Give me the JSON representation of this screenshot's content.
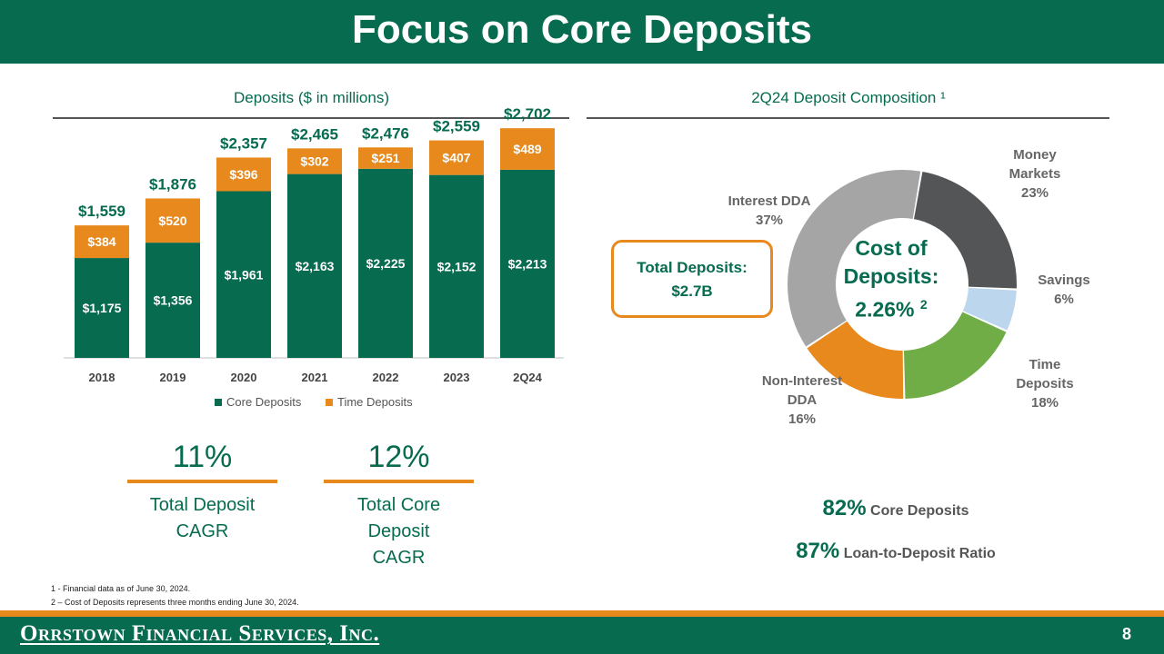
{
  "slide": {
    "title": "Focus on Core Deposits",
    "page_number": "8",
    "logo_text": "Orrstown Financial Services, Inc."
  },
  "left": {
    "section_title": "Deposits ($ in millions)",
    "cagr": [
      {
        "value": "11%",
        "label": "Total Deposit CAGR"
      },
      {
        "value": "12%",
        "label": "Total Core Deposit CAGR"
      }
    ]
  },
  "right": {
    "section_title": "2Q24 Deposit Composition ¹",
    "total_box": {
      "line1": "Total Deposits:",
      "line2": "$2.7B"
    },
    "cost_box": {
      "line1": "Cost of",
      "line2": "Deposits:",
      "value": "2.26%",
      "sup": "2"
    },
    "stats": [
      {
        "value": "82%",
        "label": "Core Deposits"
      },
      {
        "value": "87%",
        "label": "Loan-to-Deposit Ratio"
      }
    ]
  },
  "footnotes": [
    "1 -  Financial data as of June 30, 2024.",
    "2 – Cost of Deposits represents three months ending June 30, 2024."
  ],
  "colors": {
    "green": "#066b4f",
    "orange": "#e8891e",
    "dark_gray": "#545556",
    "light_blue": "#bcd6ee",
    "light_green": "#70ad47",
    "light_gray": "#a5a5a5"
  },
  "chart_data": [
    {
      "type": "bar",
      "stacked": true,
      "title": "Deposits ($ in millions)",
      "categories": [
        "2018",
        "2019",
        "2020",
        "2021",
        "2022",
        "2023",
        "2Q24"
      ],
      "series": [
        {
          "name": "Core Deposits",
          "color": "#066b4f",
          "values": [
            1175,
            1356,
            1961,
            2163,
            2225,
            2152,
            2213
          ],
          "labels": [
            "$1,175",
            "$1,356",
            "$1,961",
            "$2,163",
            "$2,225",
            "$2,152",
            "$2,213"
          ]
        },
        {
          "name": "Time Deposits",
          "color": "#e8891e",
          "values": [
            384,
            520,
            396,
            302,
            251,
            407,
            489
          ],
          "labels": [
            "$384",
            "$520",
            "$396",
            "$302",
            "$251",
            "$407",
            "$489"
          ]
        }
      ],
      "totals": [
        "$1,559",
        "$1,876",
        "$2,357",
        "$2,465",
        "$2,476",
        "$2,559",
        "$2,702"
      ],
      "ylim": [
        0,
        2800
      ],
      "legend": "bottom"
    },
    {
      "type": "pie",
      "donut": true,
      "title": "2Q24 Deposit Composition",
      "slices": [
        {
          "name": "Money Markets",
          "value": 23,
          "label": "23%",
          "color": "#545556",
          "label_lines": [
            "Money",
            "Markets",
            "23%"
          ]
        },
        {
          "name": "Savings",
          "value": 6,
          "label": "6%",
          "color": "#bcd6ee",
          "label_lines": [
            "Savings",
            "6%"
          ]
        },
        {
          "name": "Time Deposits",
          "value": 18,
          "label": "18%",
          "color": "#70ad47",
          "label_lines": [
            "Time",
            "Deposits",
            "18%"
          ]
        },
        {
          "name": "Non-Interest DDA",
          "value": 16,
          "label": "16%",
          "color": "#e8891e",
          "label_lines": [
            "Non-Interest",
            "DDA",
            "16%"
          ]
        },
        {
          "name": "Interest DDA",
          "value": 37,
          "label": "37%",
          "color": "#a5a5a5",
          "label_lines": [
            "Interest DDA",
            "37%"
          ]
        }
      ]
    }
  ]
}
